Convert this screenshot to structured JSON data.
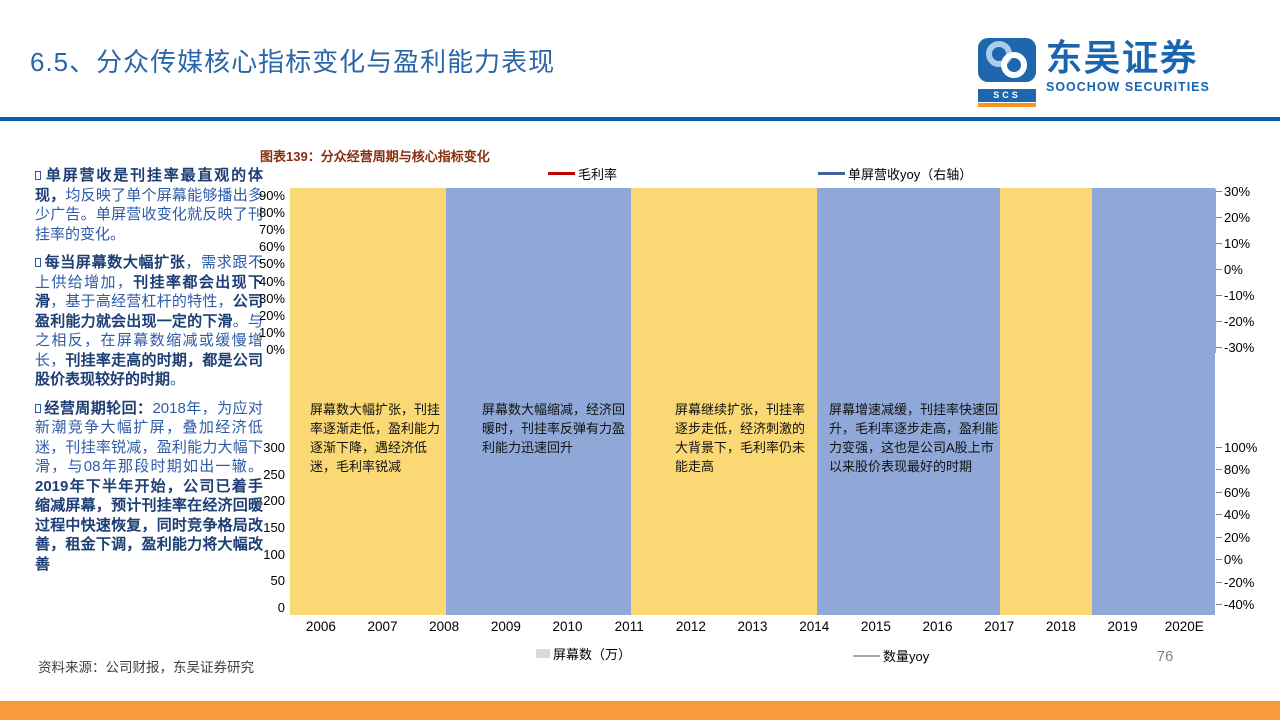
{
  "slide": {
    "title": "6.5、分众传媒核心指标变化与盈利能力表现",
    "source_note": "资料来源：公司财报，东吴证券研究",
    "page_number": "76"
  },
  "logo": {
    "badge": "SCS",
    "name_cn": "东吴证券",
    "name_en": "SOOCHOW SECURITIES"
  },
  "bullets": [
    {
      "segments": [
        {
          "t": "单屏营收是刊挂率最直观的体现，",
          "b": true
        },
        {
          "t": "均反映了单个屏幕能够播出多少广告。单屏营收变化就反映了刊挂率的变化。",
          "b": false
        }
      ]
    },
    {
      "segments": [
        {
          "t": "每当屏幕数大幅扩张",
          "b": true
        },
        {
          "t": "，需求跟不上供给增加，",
          "b": false
        },
        {
          "t": "刊挂率都会出现下滑",
          "b": true
        },
        {
          "t": "，基于高经营杠杆的特性，",
          "b": false
        },
        {
          "t": "公司盈利能力就会出现一定的下滑",
          "b": true
        },
        {
          "t": "。与之相反，在屏幕数缩减或缓慢增长，",
          "b": false
        },
        {
          "t": "刊挂率走高的时期，都是公司股价表现较好的时期",
          "b": true
        },
        {
          "t": "。",
          "b": false
        }
      ]
    },
    {
      "segments": [
        {
          "t": "经营周期轮回：",
          "b": true
        },
        {
          "t": "2018年，为应对新潮竞争大幅扩屏，叠加经济低迷，刊挂率锐减，盈利能力大幅下滑，与08年那段时期如出一辙。",
          "b": false
        },
        {
          "t": "2019年下半年开始，公司已着手缩减屏幕，预计刊挂率在经济回暖过程中快速恢复，同时竞争格局改善，租金下调，盈利能力将大幅改善",
          "b": true
        }
      ]
    }
  ],
  "chart": {
    "title": "图表139：分众经营周期与核心指标变化",
    "legend_top": [
      {
        "label": "毛利率",
        "color": "#C00000"
      },
      {
        "label": "单屏营收yoy（右轴）",
        "color": "#44609C"
      }
    ],
    "legend_bottom": [
      {
        "label": "屏幕数（万）",
        "color": "#D9D9D9",
        "type": "bar"
      },
      {
        "label": "数量yoy",
        "color": "#A6A6A6",
        "type": "line"
      }
    ],
    "axis_left_top": [
      "90%",
      "80%",
      "70%",
      "60%",
      "50%",
      "40%",
      "30%",
      "20%",
      "10%",
      "0%"
    ],
    "axis_left_bottom": [
      "300",
      "250",
      "200",
      "150",
      "100",
      "50",
      "0"
    ],
    "axis_right_top": [
      "30%",
      "20%",
      "10%",
      "0%",
      "-10%",
      "-20%",
      "-30%"
    ],
    "axis_right_bottom": [
      "100%",
      "80%",
      "60%",
      "40%",
      "20%",
      "0%",
      "-20%",
      "-40%"
    ],
    "x_labels": [
      "2006",
      "2007",
      "2008",
      "2009",
      "2010",
      "2011",
      "2012",
      "2013",
      "2014",
      "2015",
      "2016",
      "2017",
      "2018",
      "2019",
      "2020E"
    ],
    "bands": [
      {
        "from": "2006",
        "to": "2008",
        "color": "#FAD873",
        "annotation": "屏幕数大幅扩张，刊挂率逐渐走低，盈利能力逐渐下降，遇经济低迷，毛利率锐减"
      },
      {
        "from": "2008",
        "to": "2011",
        "color": "#8FA8D8",
        "annotation": "屏幕数大幅缩减，经济回暖时，刊挂率反弹有力盈利能力迅速回升"
      },
      {
        "from": "2011",
        "to": "2014",
        "color": "#FAD873",
        "annotation": "屏幕继续扩张，刊挂率逐步走低，经济刺激的大背景下，毛利率仍未能走高"
      },
      {
        "from": "2014",
        "to": "2017",
        "color": "#8FA8D8",
        "annotation": "屏幕增速减缓，刊挂率快速回升，毛利率逐步走高，盈利能力变强，这也是公司A股上市以来股价表现最好的时期"
      },
      {
        "from": "2017",
        "to": "2018",
        "color": "#FAD873",
        "annotation": ""
      },
      {
        "from": "2018",
        "to": "2020E",
        "color": "#8FA8D8",
        "annotation": ""
      }
    ],
    "colors": {
      "band_yellow": "#FAD873",
      "band_blue": "#8FA8D8",
      "gross_margin_line": "#C00000",
      "revenue_yoy_line": "#44609C",
      "screen_count_bar": "#D9D9D9",
      "qty_yoy_line": "#A6A6A6"
    }
  },
  "theme": {
    "title_blue": "#2B66A8",
    "header_rule_blue": "#0A60AA",
    "bottom_bar_orange": "#F89B3D",
    "logo_blue": "#1A65B0",
    "logo_orange": "#F7941D",
    "chart_title_red": "#8A2E10"
  }
}
